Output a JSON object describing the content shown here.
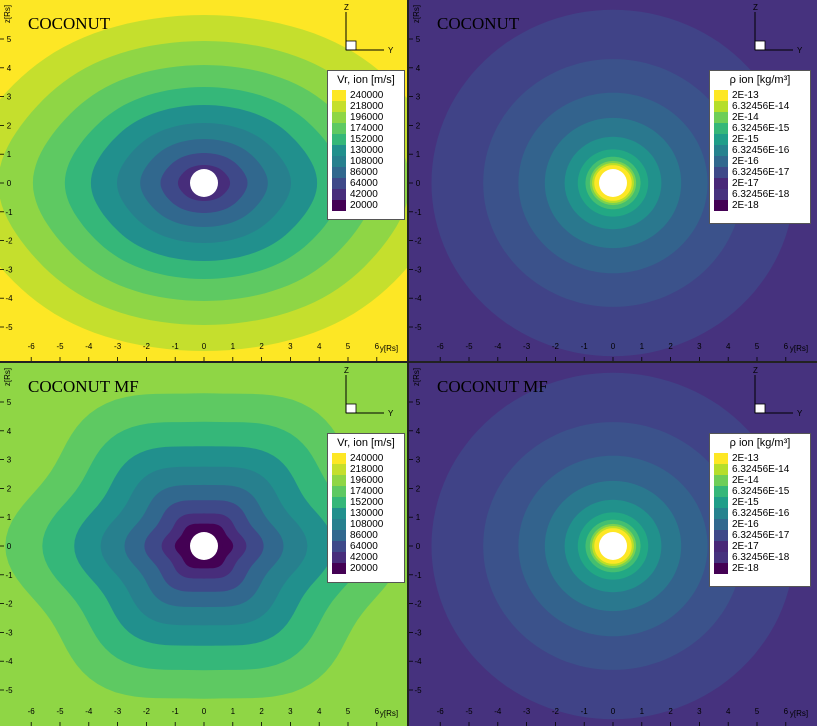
{
  "figure": {
    "panels": [
      {
        "id": "tl",
        "title": "COCONUT",
        "variable": "vr",
        "legend_title": "Vr, ion [m/s]",
        "outer_level": 240000,
        "center_level": 20000,
        "shape": "smooth"
      },
      {
        "id": "tr",
        "title": "COCONUT",
        "variable": "rho",
        "legend_title": "ρ ion [kg/m³]",
        "outer_level": "2E-18",
        "shape": "round"
      },
      {
        "id": "bl",
        "title": "COCONUT MF",
        "variable": "vr",
        "legend_title": "Vr, ion [m/s]",
        "outer_level": 196000,
        "center_level": 20000,
        "shape": "bumpy"
      },
      {
        "id": "br",
        "title": "COCONUT MF",
        "variable": "rho",
        "legend_title": "ρ ion [kg/m³]",
        "outer_level": "2E-18",
        "shape": "round"
      }
    ],
    "axes": {
      "x_label": "y[Rs]",
      "z_label": "z[Rs]",
      "x_ticks": [
        -6,
        -5,
        -4,
        -3,
        -2,
        -1,
        0,
        1,
        2,
        3,
        4,
        5,
        6
      ],
      "z_ticks": [
        -5,
        -4,
        -3,
        -2,
        -1,
        0,
        1,
        2,
        3,
        4,
        5
      ],
      "triad_z": "Z",
      "triad_y": "Y"
    },
    "legends": {
      "vr": {
        "title": "Vr, ion [m/s]",
        "levels": [
          "240000",
          "218000",
          "196000",
          "174000",
          "152000",
          "130000",
          "108000",
          "86000",
          "64000",
          "42000",
          "20000"
        ],
        "colors": [
          "#fde725",
          "#c5df2d",
          "#8fd645",
          "#5ec962",
          "#35b779",
          "#21908d",
          "#27808e",
          "#31688e",
          "#3e4989",
          "#472d7b",
          "#440154"
        ]
      },
      "rho": {
        "title": "ρ ion [kg/m³]",
        "levels": [
          "2E-13",
          "6.32456E-14",
          "2E-14",
          "6.32456E-15",
          "2E-15",
          "6.32456E-16",
          "2E-16",
          "6.32456E-17",
          "2E-17",
          "6.32456E-18",
          "2E-18"
        ],
        "colors": [
          "#fde725",
          "#b5de2b",
          "#6ece58",
          "#35b779",
          "#1f9e89",
          "#26828e",
          "#31688e",
          "#3e4989",
          "#482878",
          "#46327e",
          "#440154"
        ]
      }
    }
  },
  "chart_data": [
    {
      "type": "heatmap",
      "title": "COCONUT",
      "xlabel": "y[Rs]",
      "ylabel": "z[Rs]",
      "xlim": [
        -6.4,
        6.4
      ],
      "ylim": [
        -5.9,
        6.1
      ],
      "colorbar_title": "Vr, ion [m/s]",
      "colorbar_levels": [
        240000,
        218000,
        196000,
        174000,
        152000,
        130000,
        108000,
        86000,
        64000,
        42000,
        20000
      ],
      "center_value": 20000,
      "outer_value": 240000
    },
    {
      "type": "heatmap",
      "title": "COCONUT",
      "xlabel": "y[Rs]",
      "ylabel": "z[Rs]",
      "xlim": [
        -6.4,
        6.4
      ],
      "ylim": [
        -5.9,
        6.1
      ],
      "colorbar_title": "ρ ion [kg/m³]",
      "colorbar_levels": [
        "2E-13",
        "6.32456E-14",
        "2E-14",
        "6.32456E-15",
        "2E-15",
        "6.32456E-16",
        "2E-16",
        "6.32456E-17",
        "2E-17",
        "6.32456E-18",
        "2E-18"
      ],
      "outer_value": "2E-18"
    },
    {
      "type": "heatmap",
      "title": "COCONUT MF",
      "xlabel": "y[Rs]",
      "ylabel": "z[Rs]",
      "xlim": [
        -6.4,
        6.4
      ],
      "ylim": [
        -5.9,
        6.1
      ],
      "colorbar_title": "Vr, ion [m/s]",
      "colorbar_levels": [
        240000,
        218000,
        196000,
        174000,
        152000,
        130000,
        108000,
        86000,
        64000,
        42000,
        20000
      ],
      "center_value": 20000,
      "outer_value": 196000
    },
    {
      "type": "heatmap",
      "title": "COCONUT MF",
      "xlabel": "y[Rs]",
      "ylabel": "z[Rs]",
      "xlim": [
        -6.4,
        6.4
      ],
      "ylim": [
        -5.9,
        6.1
      ],
      "colorbar_title": "ρ ion [kg/m³]",
      "colorbar_levels": [
        "2E-13",
        "6.32456E-14",
        "2E-14",
        "6.32456E-15",
        "2E-15",
        "6.32456E-16",
        "2E-16",
        "6.32456E-17",
        "2E-17",
        "6.32456E-18",
        "2E-18"
      ],
      "outer_value": "2E-18"
    }
  ]
}
